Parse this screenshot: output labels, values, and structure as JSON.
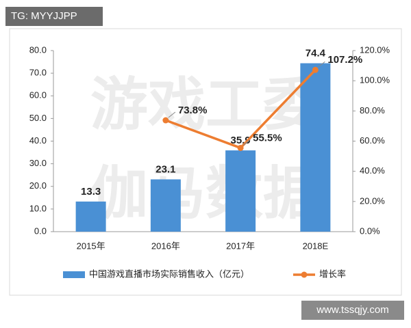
{
  "chart_data": {
    "type": "bar-line",
    "watermarks": [
      "TG: MYYJJPP",
      "www.tssqjy.com",
      "游戏工委",
      "伽马数据"
    ],
    "categories": [
      "2015年",
      "2016年",
      "2017年",
      "2018E"
    ],
    "series": [
      {
        "name": "中国游戏直播市场实际销售收入（亿元）",
        "type": "bar",
        "color": "#4a90d4",
        "values": [
          13.3,
          23.1,
          35.9,
          74.4
        ]
      },
      {
        "name": "增长率",
        "type": "line",
        "axis": "y2",
        "color": "#ed7d31",
        "values": [
          null,
          73.8,
          55.5,
          107.2
        ],
        "value_labels": [
          null,
          "73.8%",
          "55.5%",
          "107.2%"
        ]
      }
    ],
    "ylim": [
      0,
      80
    ],
    "yticks": [
      {
        "value": 0,
        "label": "0.0"
      },
      {
        "value": 10,
        "label": "10.0"
      },
      {
        "value": 20,
        "label": "20.0"
      },
      {
        "value": 30,
        "label": "30.0"
      },
      {
        "value": 40,
        "label": "40.0"
      },
      {
        "value": 50,
        "label": "50.0"
      },
      {
        "value": 60,
        "label": "60.0"
      },
      {
        "value": 70,
        "label": "70.0"
      },
      {
        "value": 80,
        "label": "80.0"
      }
    ],
    "y2lim": [
      0,
      120
    ],
    "y2ticks": [
      {
        "value": 0,
        "label": "0.0%"
      },
      {
        "value": 20,
        "label": "20.0%"
      },
      {
        "value": 40,
        "label": "40.0%"
      },
      {
        "value": 60,
        "label": "60.0%"
      },
      {
        "value": 80,
        "label": "80.0%"
      },
      {
        "value": 100,
        "label": "100.0%"
      },
      {
        "value": 120,
        "label": "120.0%"
      }
    ],
    "legend": "bottom",
    "grid": false
  }
}
